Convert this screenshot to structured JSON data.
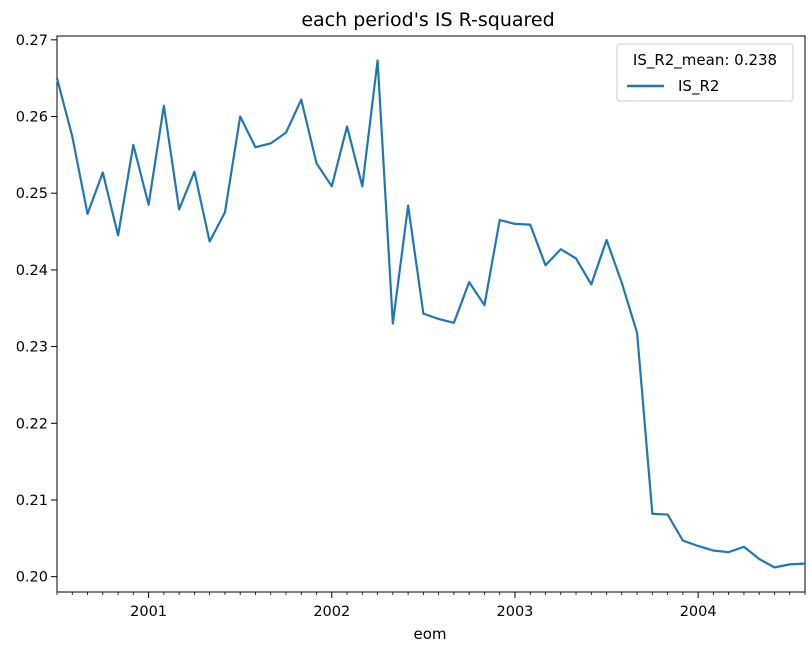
{
  "chart_data": {
    "type": "line",
    "title": "each period's IS R-squared",
    "xlabel": "eom",
    "ylabel": "",
    "x_tick_labels": [
      "2001",
      "2002",
      "2003",
      "2004"
    ],
    "y_tick_labels": [
      "0.20",
      "0.21",
      "0.22",
      "0.23",
      "0.24",
      "0.25",
      "0.26",
      "0.27"
    ],
    "x_ticks": [
      "2001-01",
      "2002-01",
      "2003-01",
      "2004-01"
    ],
    "y_ticks": [
      0.2,
      0.21,
      0.22,
      0.23,
      0.24,
      0.25,
      0.26,
      0.27
    ],
    "xlim": [
      "2000-07",
      "2004-08"
    ],
    "ylim": [
      0.198,
      0.2705
    ],
    "grid": false,
    "legend": {
      "title": "IS_R2_mean: 0.238",
      "placement": "top-right"
    },
    "series": [
      {
        "name": "IS_R2",
        "color": "#1f77b4",
        "x": [
          "2000-07",
          "2000-08",
          "2000-09",
          "2000-10",
          "2000-11",
          "2000-12",
          "2001-01",
          "2001-02",
          "2001-03",
          "2001-04",
          "2001-05",
          "2001-06",
          "2001-07",
          "2001-08",
          "2001-09",
          "2001-10",
          "2001-11",
          "2001-12",
          "2002-01",
          "2002-02",
          "2002-03",
          "2002-04",
          "2002-05",
          "2002-06",
          "2002-07",
          "2002-08",
          "2002-09",
          "2002-10",
          "2002-11",
          "2002-12",
          "2003-01",
          "2003-02",
          "2003-03",
          "2003-04",
          "2003-05",
          "2003-06",
          "2003-07",
          "2003-08",
          "2003-09",
          "2003-10",
          "2003-11",
          "2003-12",
          "2004-01",
          "2004-02",
          "2004-03",
          "2004-04",
          "2004-05",
          "2004-06",
          "2004-07",
          "2004-08"
        ],
        "values": [
          0.265,
          0.2574,
          0.2473,
          0.2527,
          0.2445,
          0.2563,
          0.2485,
          0.2614,
          0.2479,
          0.2528,
          0.2437,
          0.2475,
          0.26,
          0.256,
          0.2565,
          0.2579,
          0.2622,
          0.2539,
          0.2509,
          0.2587,
          0.2509,
          0.2673,
          0.233,
          0.2484,
          0.2343,
          0.2336,
          0.2331,
          0.2384,
          0.2354,
          0.2465,
          0.246,
          0.2459,
          0.2406,
          0.2427,
          0.2415,
          0.2381,
          0.2439,
          0.2383,
          0.2318,
          0.2082,
          0.2081,
          0.2047,
          0.204,
          0.2034,
          0.2032,
          0.2039,
          0.2023,
          0.2012,
          0.2016,
          0.2017
        ]
      }
    ]
  }
}
